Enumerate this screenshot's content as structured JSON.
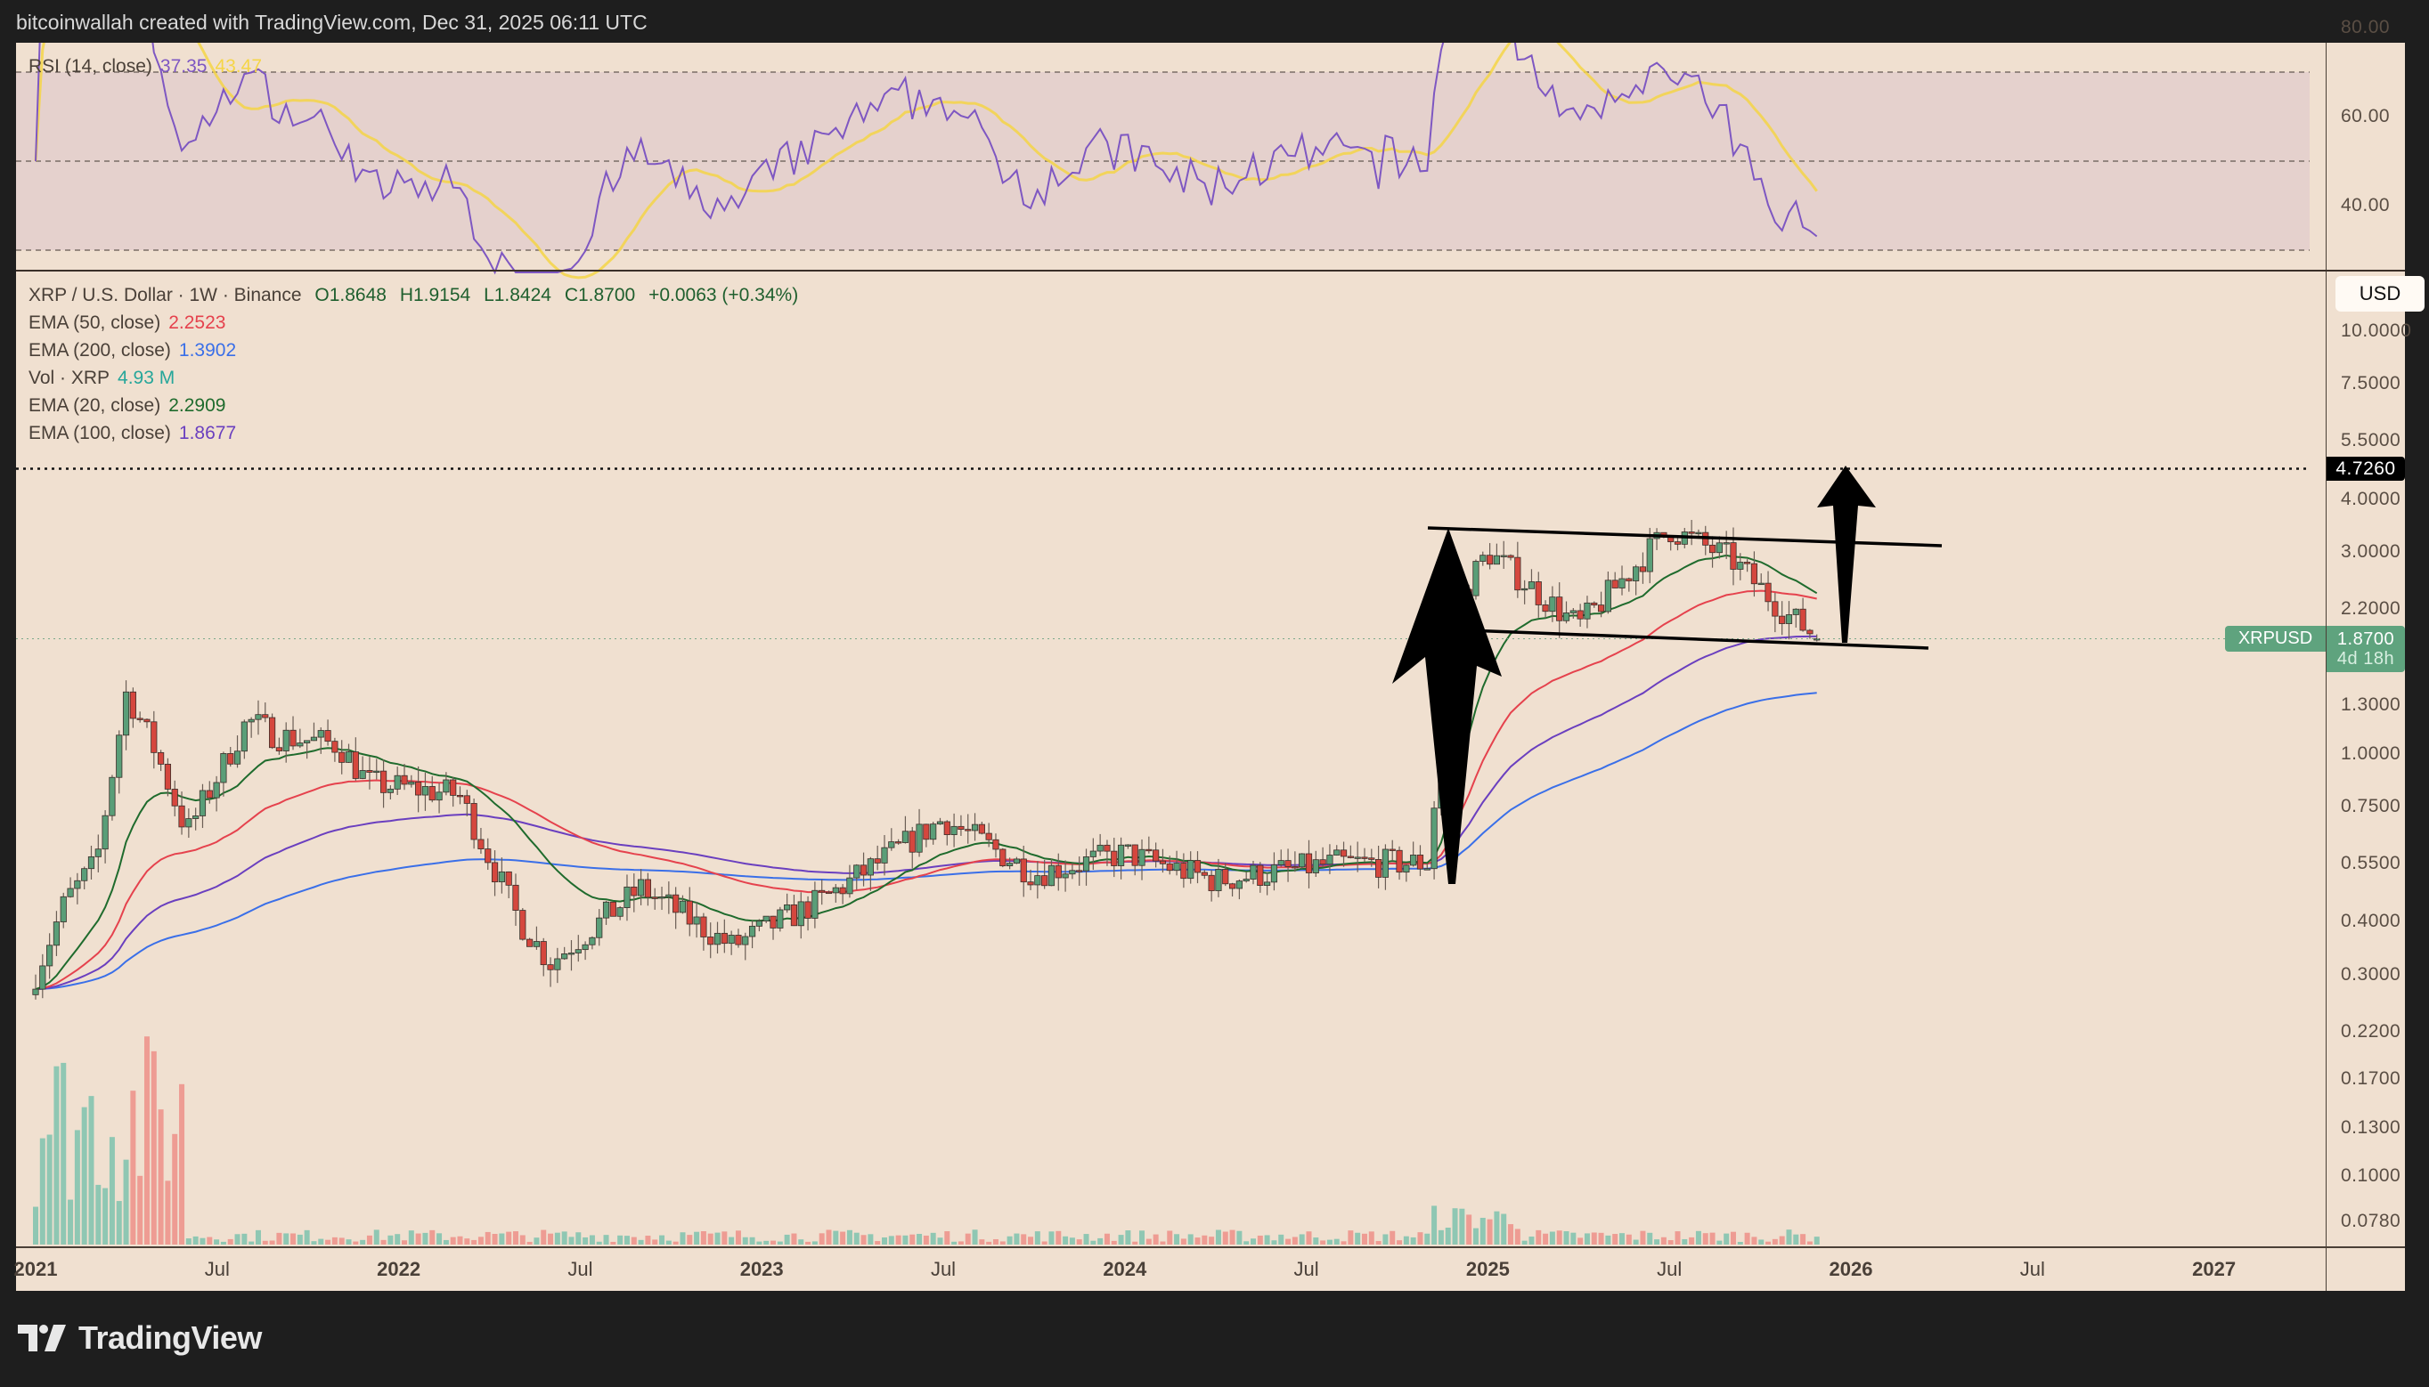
{
  "header": {
    "text": "bitcoinwallah created with TradingView.com, Dec 31, 2025 06:11 UTC"
  },
  "rsi": {
    "label": "RSI (14, close)",
    "value": "37.35",
    "ma_value": "43.47",
    "colors": {
      "rsi": "#7e57c2",
      "ma": "#f5d547",
      "band": "#e3cfcc"
    },
    "axis_labels": [
      "80.00",
      "60.00",
      "40.00"
    ]
  },
  "legend": {
    "symbol": "XRP / U.S. Dollar · 1W · Binance",
    "open": "O1.8648",
    "high": "H1.9154",
    "low": "L1.8424",
    "close": "C1.8700",
    "change": "+0.0063 (+0.34%)",
    "indicators": [
      {
        "label": "EMA (50, close)",
        "value": "2.2523",
        "color": "#e5424d"
      },
      {
        "label": "EMA (200, close)",
        "value": "1.3902",
        "color": "#3a6fe8"
      },
      {
        "label": "Vol · XRP",
        "value": "4.93 M",
        "color": "#26a69a"
      },
      {
        "label": "EMA (20, close)",
        "value": "2.2909",
        "color": "#1f6b2d"
      },
      {
        "label": "EMA (100, close)",
        "value": "1.8677",
        "color": "#6a3fbf"
      }
    ]
  },
  "price_axis": {
    "currency_button": "USD",
    "labels": [
      "10.0000",
      "7.5000",
      "5.5000",
      "4.0000",
      "3.0000",
      "2.2000",
      "1.3000",
      "1.0000",
      "0.7500",
      "0.5500",
      "0.4000",
      "0.3000",
      "0.2200",
      "0.1700",
      "0.1300",
      "0.1000",
      "0.0780"
    ],
    "target_tag": "4.7260",
    "symbol_tag": "XRPUSD",
    "last_price_tag": "1.8700",
    "countdown": "4d 18h"
  },
  "time_axis": {
    "labels": [
      {
        "text": "2021",
        "year": true
      },
      {
        "text": "Jul",
        "year": false
      },
      {
        "text": "2022",
        "year": true
      },
      {
        "text": "Jul",
        "year": false
      },
      {
        "text": "2023",
        "year": true
      },
      {
        "text": "Jul",
        "year": false
      },
      {
        "text": "2024",
        "year": true
      },
      {
        "text": "Jul",
        "year": false
      },
      {
        "text": "2025",
        "year": true
      },
      {
        "text": "Jul",
        "year": false
      },
      {
        "text": "2026",
        "year": true
      },
      {
        "text": "Jul",
        "year": false
      },
      {
        "text": "2027",
        "year": true
      }
    ]
  },
  "branding": {
    "logo_text": "TradingView"
  },
  "chart_data": {
    "type": "candlestick",
    "title": "XRP / U.S. Dollar · 1W · Binance",
    "scale": "log",
    "ylim": [
      0.072,
      13.0
    ],
    "x_range": [
      "2021-01",
      "2027-03"
    ],
    "last": {
      "open": 1.8648,
      "high": 1.9154,
      "low": 1.8424,
      "close": 1.87,
      "change": 0.0063,
      "change_pct": 0.34
    },
    "approx_close_path": [
      {
        "date": "2021-01",
        "close": 0.3
      },
      {
        "date": "2021-02",
        "close": 0.45
      },
      {
        "date": "2021-03",
        "close": 0.55
      },
      {
        "date": "2021-04",
        "close": 1.4
      },
      {
        "date": "2021-05",
        "close": 1.0
      },
      {
        "date": "2021-06",
        "close": 0.65
      },
      {
        "date": "2021-08",
        "close": 1.2
      },
      {
        "date": "2021-09",
        "close": 1.1
      },
      {
        "date": "2021-11",
        "close": 1.05
      },
      {
        "date": "2021-12",
        "close": 0.85
      },
      {
        "date": "2022-03",
        "close": 0.8
      },
      {
        "date": "2022-05",
        "close": 0.4
      },
      {
        "date": "2022-06",
        "close": 0.32
      },
      {
        "date": "2022-09",
        "close": 0.48
      },
      {
        "date": "2022-12",
        "close": 0.35
      },
      {
        "date": "2023-03",
        "close": 0.45
      },
      {
        "date": "2023-07",
        "close": 0.7
      },
      {
        "date": "2023-10",
        "close": 0.52
      },
      {
        "date": "2024-01",
        "close": 0.58
      },
      {
        "date": "2024-04",
        "close": 0.5
      },
      {
        "date": "2024-08",
        "close": 0.55
      },
      {
        "date": "2024-11",
        "close": 0.55
      },
      {
        "date": "2024-12",
        "close": 2.3
      },
      {
        "date": "2025-01",
        "close": 3.0
      },
      {
        "date": "2025-04",
        "close": 2.0
      },
      {
        "date": "2025-07",
        "close": 3.4
      },
      {
        "date": "2025-09",
        "close": 2.9
      },
      {
        "date": "2025-11",
        "close": 2.1
      },
      {
        "date": "2025-12",
        "close": 1.87
      }
    ],
    "indicators": {
      "ema20": 2.2909,
      "ema50": 2.2523,
      "ema100": 1.8677,
      "ema200": 1.3902,
      "rsi14": 37.35,
      "rsi_ma": 43.47,
      "volume": "4.93M"
    },
    "annotations": [
      {
        "type": "horizontal_line",
        "price": 4.726,
        "style": "dotted"
      },
      {
        "type": "channel",
        "description": "descending parallel channel from ~3.5 to ~1.85 (Dec 2024 – Feb 2026)"
      },
      {
        "type": "arrow",
        "description": "flagpole up arrow Nov–Dec 2024"
      },
      {
        "type": "arrow",
        "description": "projected up arrow to 4.726 target"
      }
    ],
    "rsi_levels": [
      70,
      50,
      30
    ]
  }
}
